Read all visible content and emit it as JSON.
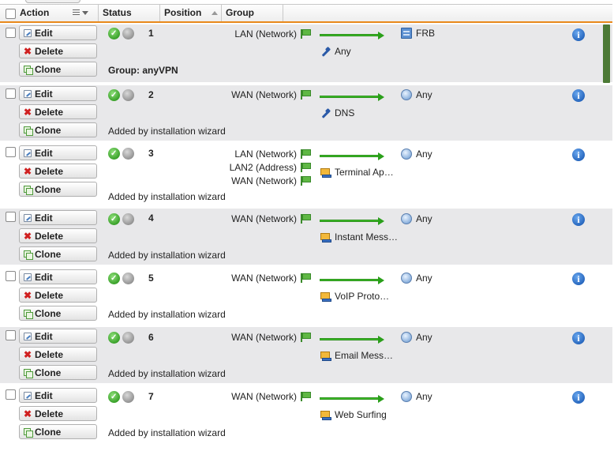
{
  "header": {
    "action": "Action",
    "status": "Status",
    "position": "Position",
    "group": "Group"
  },
  "buttons": {
    "edit": "Edit",
    "delete": "Delete",
    "clone": "Clone"
  },
  "rows": [
    {
      "position": "1",
      "sources": [
        "LAN (Network)"
      ],
      "destination": "FRB",
      "service": "Any",
      "comment": "Group: anyVPN",
      "enabled": true
    },
    {
      "position": "2",
      "sources": [
        "WAN (Network)"
      ],
      "destination": "Any",
      "service": "DNS",
      "comment": "Added by installation wizard",
      "enabled": true
    },
    {
      "position": "3",
      "sources": [
        "LAN (Network)",
        "LAN2 (Address)",
        "WAN (Network)"
      ],
      "destination": "Any",
      "service": "Terminal Ap…",
      "comment": "Added by installation wizard",
      "enabled": true
    },
    {
      "position": "4",
      "sources": [
        "WAN (Network)"
      ],
      "destination": "Any",
      "service": "Instant Mess…",
      "comment": "Added by installation wizard",
      "enabled": true
    },
    {
      "position": "5",
      "sources": [
        "WAN (Network)"
      ],
      "destination": "Any",
      "service": "VoIP Proto…",
      "comment": "Added by installation wizard",
      "enabled": true
    },
    {
      "position": "6",
      "sources": [
        "WAN (Network)"
      ],
      "destination": "Any",
      "service": "Email Mess…",
      "comment": "Added by installation wizard",
      "enabled": true
    },
    {
      "position": "7",
      "sources": [
        "WAN (Network)"
      ],
      "destination": "Any",
      "service": "Web Surfing",
      "comment": "Added by installation wizard",
      "enabled": true
    }
  ],
  "colors": {
    "header_accent": "#e8891c",
    "row_alt": "#e8e8ea",
    "status_on": "#3aa12a",
    "arrow": "#3fc12a",
    "info": "#1f5fb8"
  }
}
